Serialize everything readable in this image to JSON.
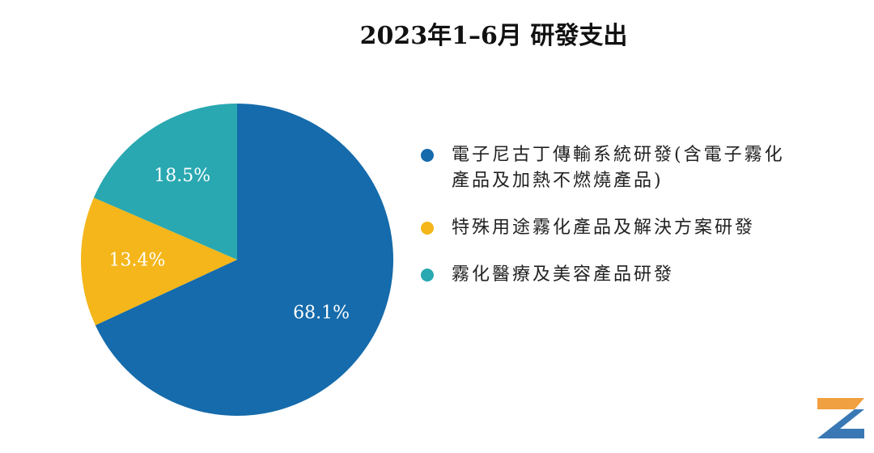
{
  "chart_data": {
    "type": "pie",
    "title": "2023年1–6月 研發支出",
    "categories": [
      "電子尼古丁傳輸系統研發(含電子霧化產品及加熱不燃燒產品)",
      "特殊用途霧化產品及解決方案研發",
      "霧化醫療及美容產品研發"
    ],
    "values": [
      68.1,
      13.4,
      18.5
    ],
    "value_labels": [
      "68.1%",
      "13.4%",
      "18.5%"
    ],
    "colors": [
      "#156bab",
      "#f4b61a",
      "#29a8b1"
    ],
    "legend": "right"
  }
}
